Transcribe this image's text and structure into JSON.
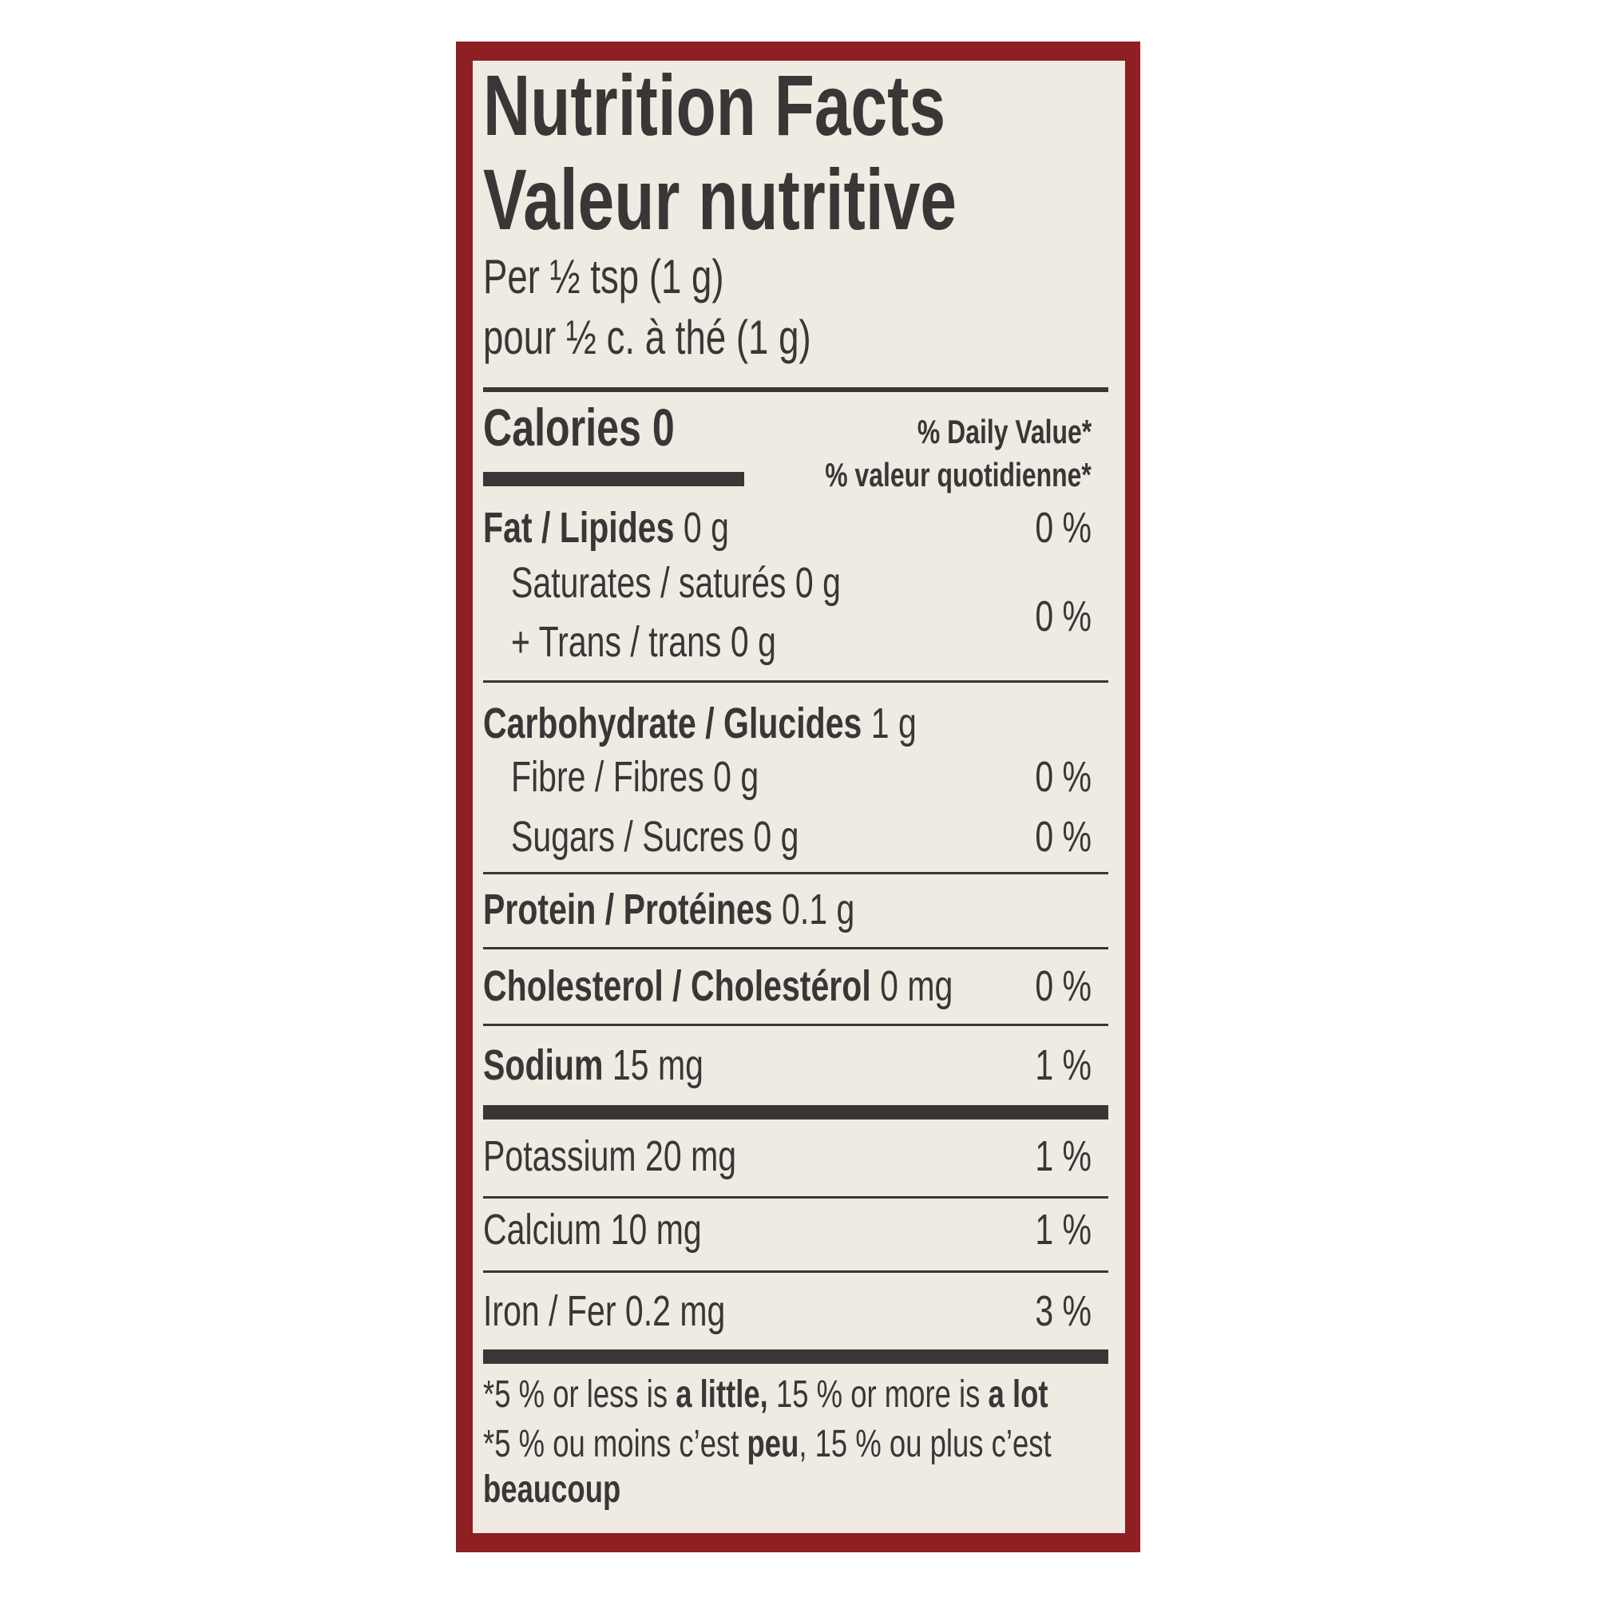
{
  "label": {
    "title_en": "Nutrition Facts",
    "title_fr": "Valeur nutritive",
    "serving_en": "Per ½ tsp (1 g)",
    "serving_fr": "pour ½ c. à thé (1 g)",
    "calories_label": "Calories",
    "calories_value": "0",
    "dv_en": "% Daily Value*",
    "dv_fr": "% valeur quotidienne*",
    "nutrients": [
      {
        "name": "Fat / Lipides",
        "amount": "0 g",
        "dv": "0 %"
      },
      {
        "name": "Saturates / saturés",
        "amount": "0 g"
      },
      {
        "name": "+ Trans / trans",
        "amount": "0 g",
        "dv": "0 %"
      },
      {
        "name": "Carbohydrate / Glucides",
        "amount": "1 g"
      },
      {
        "name": "Fibre / Fibres",
        "amount": "0 g",
        "dv": "0 %"
      },
      {
        "name": "Sugars / Sucres",
        "amount": "0 g",
        "dv": "0 %"
      },
      {
        "name": "Protein / Protéines",
        "amount": "0.1 g"
      },
      {
        "name": "Cholesterol / Cholestérol",
        "amount": "0 mg",
        "dv": "0 %"
      },
      {
        "name": "Sodium",
        "amount": "15 mg",
        "dv": "1 %"
      },
      {
        "name": "Potassium",
        "amount": "20 mg",
        "dv": "1 %"
      },
      {
        "name": "Calcium",
        "amount": "10 mg",
        "dv": "1 %"
      },
      {
        "name": "Iron / Fer",
        "amount": "0.2 mg",
        "dv": "3 %"
      }
    ],
    "footnote_en": {
      "a": "*5 % or less is ",
      "b": "a little,",
      "c": " 15 % or more is ",
      "d": "a lot"
    },
    "footnote_fr": {
      "a": "*5 % ou moins c’est ",
      "b": "peu",
      "c": ", 15 % ou plus c’est",
      "d": "beaucoup"
    },
    "colors": {
      "border": "#8e1f22",
      "panel": "#efeae2",
      "ink": "#3b3636"
    }
  }
}
